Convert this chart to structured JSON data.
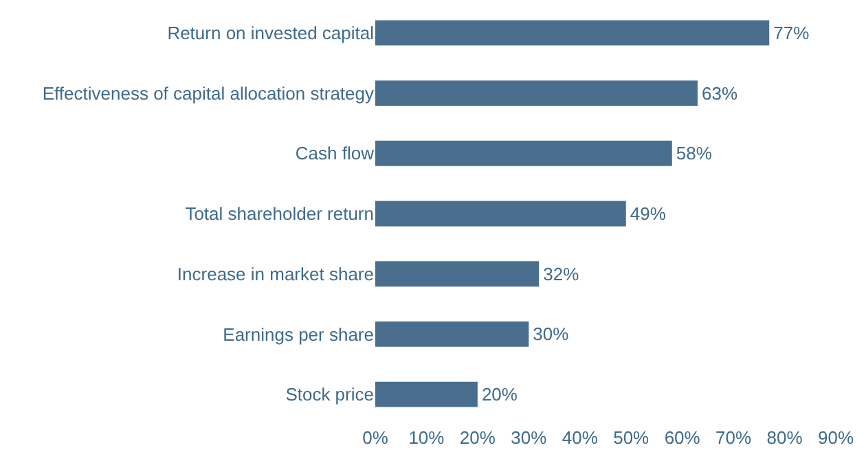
{
  "chart_data": {
    "type": "bar",
    "orientation": "horizontal",
    "categories": [
      "Return on invested capital",
      "Effectiveness of capital allocation strategy",
      "Cash flow",
      "Total shareholder return",
      "Increase in market share",
      "Earnings per share",
      "Stock price"
    ],
    "values": [
      77,
      63,
      58,
      49,
      32,
      30,
      20
    ],
    "value_labels": [
      "77%",
      "63%",
      "58%",
      "49%",
      "32%",
      "30%",
      "20%"
    ],
    "color": "#4a6f8e",
    "xlim": [
      0,
      90
    ],
    "xticks": [
      {
        "value": 0,
        "label": "0%"
      },
      {
        "value": 10,
        "label": "10%"
      },
      {
        "value": 20,
        "label": "20%"
      },
      {
        "value": 30,
        "label": "30%"
      },
      {
        "value": 40,
        "label": "40%"
      },
      {
        "value": 50,
        "label": "50%"
      },
      {
        "value": 60,
        "label": "60%"
      },
      {
        "value": 70,
        "label": "70%"
      },
      {
        "value": 80,
        "label": "80%"
      },
      {
        "value": 90,
        "label": "90%"
      }
    ],
    "grid": false
  }
}
